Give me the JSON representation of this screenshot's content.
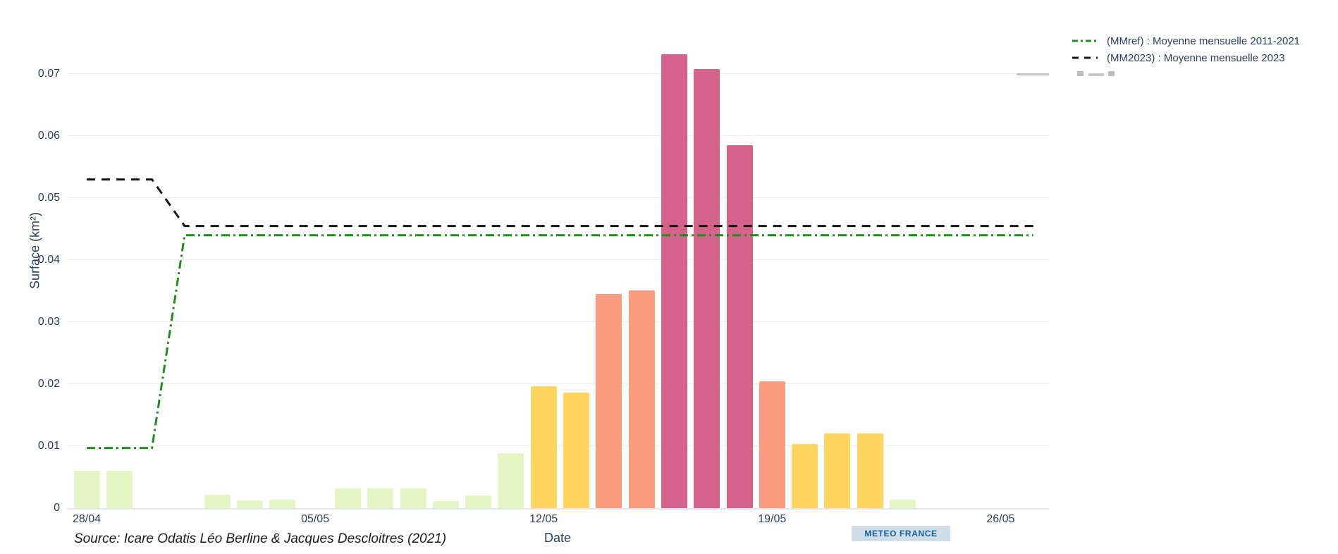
{
  "footer": {
    "source": "Source: Icare Odatis Léo Berline & Jacques Descloitres (2021)",
    "badge": "METEO FRANCE"
  },
  "colors": {
    "bar_palette": {
      "green": "#e5f4c2",
      "yellow": "#ffd45f",
      "salmon": "#fd9b7f",
      "pink": "#d5628a"
    },
    "mmref_line": "#1f8c1c",
    "mm2023_line": "#141414",
    "axis_text": "#2a3f5f",
    "grid": "#e9edf6",
    "badge_bg": "#cfdee8",
    "badge_text": "#15609c"
  },
  "chart_data": {
    "type": "bar",
    "title": "",
    "xlabel": "Date",
    "ylabel": "Surface (km²)",
    "ylim": [
      0,
      0.078
    ],
    "ytick_step": 0.01,
    "ytick_labels": [
      "0",
      "0.01",
      "0.02",
      "0.03",
      "0.04",
      "0.05",
      "0.06",
      "0.07"
    ],
    "grid": true,
    "legend_position": "top-right",
    "x_dates": [
      "28/04",
      "29/04",
      "30/04",
      "01/05",
      "02/05",
      "03/05",
      "04/05",
      "05/05",
      "06/05",
      "07/05",
      "08/05",
      "09/05",
      "10/05",
      "11/05",
      "12/05",
      "13/05",
      "14/05",
      "15/05",
      "16/05",
      "17/05",
      "18/05",
      "19/05",
      "20/05",
      "21/05",
      "22/05",
      "23/05",
      "24/05",
      "25/05",
      "26/05",
      "27/05"
    ],
    "xtick_indices": [
      0,
      7,
      14,
      21,
      28
    ],
    "xtick_labels": [
      "28/04",
      "05/05",
      "12/05",
      "19/05",
      "26/05"
    ],
    "bars": {
      "name": "Surface journalière",
      "values": [
        0.006,
        0.006,
        0,
        0,
        0.0022,
        0.0013,
        0.0014,
        0,
        0.0032,
        0.0032,
        0.0032,
        0.0011,
        0.0021,
        0.0089,
        0.0197,
        0.0186,
        0.0345,
        0.0351,
        0.0732,
        0.0708,
        0.0585,
        0.0205,
        0.0103,
        0.012,
        0.012,
        0.0014,
        0,
        0,
        0,
        0
      ],
      "colors": [
        "green",
        "green",
        "",
        "",
        "green",
        "green",
        "green",
        "",
        "green",
        "green",
        "green",
        "green",
        "green",
        "green",
        "yellow",
        "yellow",
        "salmon",
        "salmon",
        "pink",
        "pink",
        "pink",
        "salmon",
        "yellow",
        "yellow",
        "yellow",
        "green",
        "",
        "",
        "",
        ""
      ]
    },
    "lines": [
      {
        "name": "(MMref) : Moyenne mensuelle 2011-2021",
        "color": "#1f8c1c",
        "dash": "dashdot",
        "x_idx": [
          0,
          2,
          3,
          29
        ],
        "values": [
          0.0097,
          0.0097,
          0.044,
          0.044
        ]
      },
      {
        "name": "(MM2023) : Moyenne mensuelle 2023",
        "color": "#141414",
        "dash": "dash",
        "x_idx": [
          0,
          2,
          3,
          29
        ],
        "values": [
          0.053,
          0.053,
          0.0455,
          0.0455
        ]
      }
    ]
  }
}
